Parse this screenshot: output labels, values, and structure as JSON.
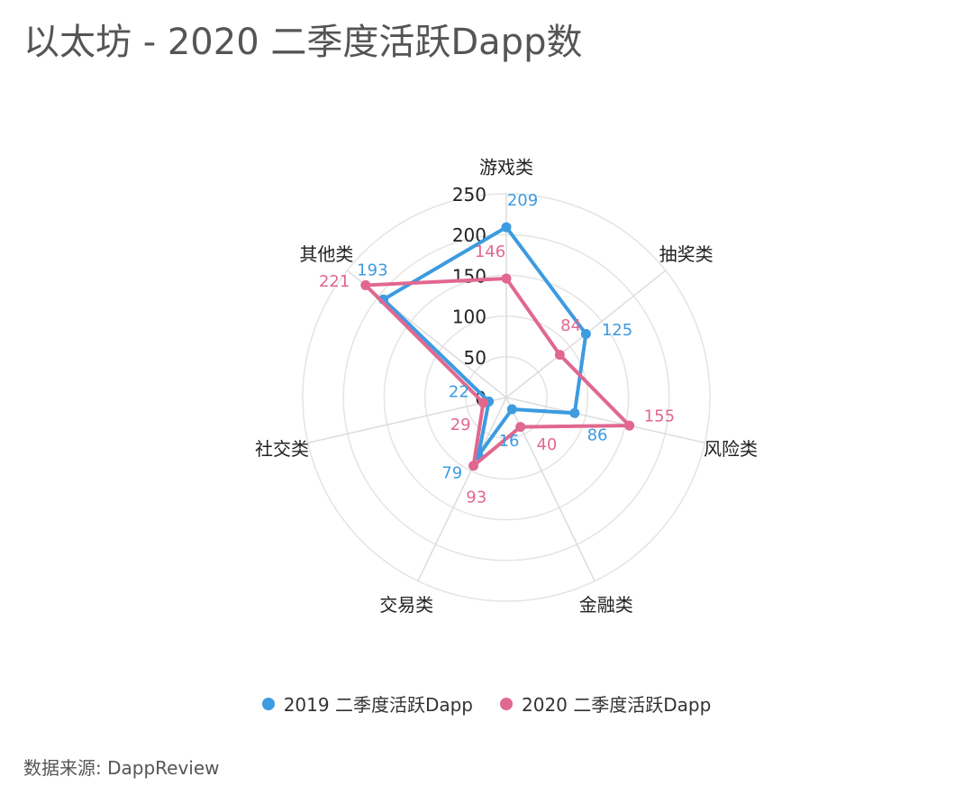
{
  "chart_data": {
    "type": "radar",
    "title": "以太坊 - 2020 二季度活跃Dapp数",
    "categories": [
      "游戏类",
      "抽奖类",
      "风险类",
      "金融类",
      "交易类",
      "社交类",
      "其他类"
    ],
    "radial_ticks": [
      "0",
      "50",
      "100",
      "150",
      "200",
      "250"
    ],
    "rlim": [
      0,
      250
    ],
    "series": [
      {
        "name": "2019 二季度活跃Dapp",
        "color": "#3d9be0",
        "values": [
          209,
          125,
          86,
          16,
          79,
          22,
          193
        ]
      },
      {
        "name": "2020 二季度活跃Dapp",
        "color": "#e06890",
        "values": [
          146,
          84,
          155,
          40,
          93,
          29,
          221
        ]
      }
    ],
    "legend_position": "bottom",
    "source": "数据来源: DappReview"
  }
}
